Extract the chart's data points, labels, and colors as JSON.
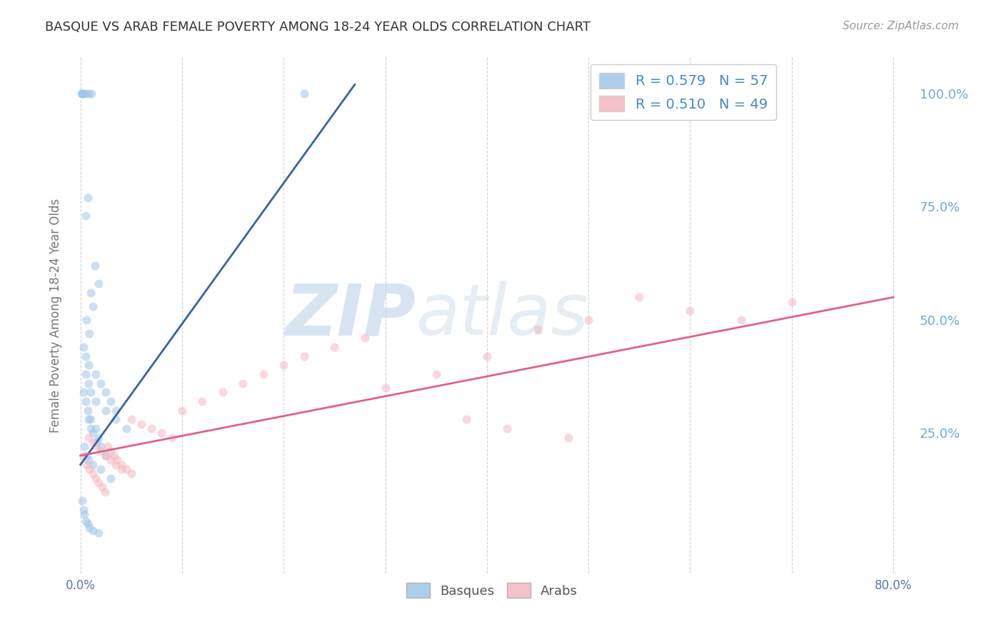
{
  "title": "BASQUE VS ARAB FEMALE POVERTY AMONG 18-24 YEAR OLDS CORRELATION CHART",
  "source": "Source: ZipAtlas.com",
  "ylabel": "Female Poverty Among 18-24 Year Olds",
  "basque_color": "#9fc5e8",
  "arab_color": "#f4b8c1",
  "basque_line_color": "#3465a4",
  "arab_line_color": "#e06090",
  "right_axis_color": "#6fa8dc",
  "legend_text_color": "#222244",
  "legend_number_color": "#4488cc",
  "background_color": "#ffffff",
  "grid_color": "#cccccc",
  "R_basque": 0.579,
  "N_basque": 57,
  "R_arab": 0.51,
  "N_arab": 49,
  "xlim": [
    -0.01,
    0.82
  ],
  "ylim": [
    -0.06,
    1.08
  ],
  "y_ticks_right": [
    0.25,
    0.5,
    0.75,
    1.0
  ],
  "y_tick_labels_right": [
    "25.0%",
    "50.0%",
    "75.0%",
    "100.0%"
  ],
  "title_fontsize": 13,
  "source_fontsize": 11,
  "marker_size": 75,
  "marker_alpha": 0.55,
  "line_width": 2.0,
  "basque_x": [
    0.002,
    0.005,
    0.008,
    0.011,
    0.002,
    0.22,
    0.003,
    0.001,
    0.007,
    0.005,
    0.014,
    0.018,
    0.01,
    0.012,
    0.006,
    0.009,
    0.003,
    0.005,
    0.008,
    0.015,
    0.02,
    0.025,
    0.03,
    0.035,
    0.008,
    0.01,
    0.012,
    0.016,
    0.02,
    0.025,
    0.003,
    0.005,
    0.007,
    0.01,
    0.015,
    0.018,
    0.004,
    0.006,
    0.008,
    0.012,
    0.02,
    0.03,
    0.005,
    0.008,
    0.01,
    0.015,
    0.025,
    0.035,
    0.045,
    0.002,
    0.003,
    0.004,
    0.005,
    0.007,
    0.009,
    0.012,
    0.018
  ],
  "basque_y": [
    1.0,
    1.0,
    1.0,
    1.0,
    1.0,
    1.0,
    1.0,
    1.0,
    0.77,
    0.73,
    0.62,
    0.58,
    0.56,
    0.53,
    0.5,
    0.47,
    0.44,
    0.42,
    0.4,
    0.38,
    0.36,
    0.34,
    0.32,
    0.3,
    0.28,
    0.26,
    0.25,
    0.23,
    0.22,
    0.2,
    0.34,
    0.32,
    0.3,
    0.28,
    0.26,
    0.24,
    0.22,
    0.2,
    0.19,
    0.18,
    0.17,
    0.15,
    0.38,
    0.36,
    0.34,
    0.32,
    0.3,
    0.28,
    0.26,
    0.1,
    0.08,
    0.07,
    0.055,
    0.05,
    0.04,
    0.035,
    0.03
  ],
  "arab_x": [
    0.003,
    0.006,
    0.009,
    0.012,
    0.015,
    0.018,
    0.021,
    0.024,
    0.027,
    0.03,
    0.033,
    0.036,
    0.04,
    0.045,
    0.05,
    0.008,
    0.012,
    0.016,
    0.02,
    0.025,
    0.03,
    0.035,
    0.04,
    0.05,
    0.06,
    0.07,
    0.08,
    0.09,
    0.1,
    0.12,
    0.14,
    0.16,
    0.18,
    0.2,
    0.22,
    0.25,
    0.28,
    0.3,
    0.35,
    0.4,
    0.45,
    0.5,
    0.55,
    0.6,
    0.65,
    0.7,
    0.38,
    0.42,
    0.48
  ],
  "arab_y": [
    0.2,
    0.18,
    0.17,
    0.16,
    0.15,
    0.14,
    0.13,
    0.12,
    0.22,
    0.21,
    0.2,
    0.19,
    0.18,
    0.17,
    0.16,
    0.24,
    0.23,
    0.22,
    0.21,
    0.2,
    0.19,
    0.18,
    0.17,
    0.28,
    0.27,
    0.26,
    0.25,
    0.24,
    0.3,
    0.32,
    0.34,
    0.36,
    0.38,
    0.4,
    0.42,
    0.44,
    0.46,
    0.35,
    0.38,
    0.42,
    0.48,
    0.5,
    0.55,
    0.52,
    0.5,
    0.54,
    0.28,
    0.26,
    0.24
  ]
}
